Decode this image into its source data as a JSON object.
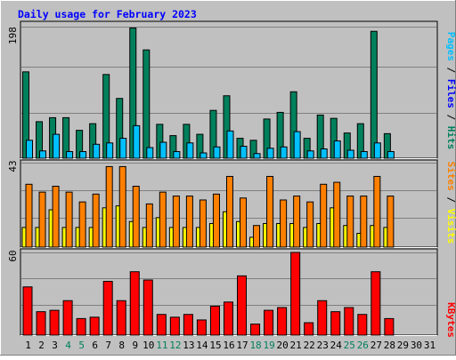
{
  "chart_data": {
    "type": "bar",
    "title": "Daily usage for February 2023",
    "x": [
      "1",
      "2",
      "3",
      "4",
      "5",
      "6",
      "7",
      "8",
      "9",
      "10",
      "11",
      "12",
      "13",
      "14",
      "15",
      "16",
      "17",
      "18",
      "19",
      "20",
      "21",
      "22",
      "23",
      "24",
      "25",
      "26",
      "27",
      "28",
      "29",
      "30",
      "31"
    ],
    "weekend_days": [
      "4",
      "5",
      "11",
      "12",
      "18",
      "19",
      "25",
      "26"
    ],
    "panels": [
      {
        "id": "top",
        "ymax_label": "198",
        "ymax": 198,
        "labels_right": [
          "Hits",
          "Files",
          "Pages"
        ],
        "series": [
          {
            "name": "Hits",
            "color": "#00805c",
            "values": [
              130,
              55,
              61,
              61,
              42,
              52,
              126,
              90,
              196,
              163,
              51,
              34,
              51,
              36,
              72,
              94,
              30,
              27,
              59,
              69,
              100,
              30,
              65,
              60,
              38,
              52,
              191,
              37,
              0,
              0,
              0
            ]
          },
          {
            "name": "Files",
            "color": "#00c0ff",
            "values": [
              27,
              11,
              36,
              10,
              10,
              21,
              23,
              30,
              49,
              16,
              24,
              10,
              23,
              8,
              17,
              41,
              18,
              7,
              15,
              17,
              40,
              11,
              14,
              26,
              12,
              10,
              23,
              10,
              0,
              0,
              0
            ]
          },
          {
            "name": "Pages",
            "color": "#00c0ff",
            "values": [
              27,
              11,
              36,
              10,
              10,
              21,
              23,
              30,
              49,
              16,
              24,
              10,
              23,
              8,
              17,
              41,
              18,
              7,
              15,
              17,
              40,
              11,
              14,
              26,
              12,
              10,
              23,
              10,
              0,
              0,
              0
            ]
          }
        ]
      },
      {
        "id": "middle",
        "ymax_label": "43",
        "ymax": 43,
        "labels_right": [
          "Visits",
          "Sites"
        ],
        "series": [
          {
            "name": "Visits",
            "color": "#ff8000",
            "values": [
              32,
              28,
              31,
              28,
              23,
              27,
              41,
              41,
              31,
              22,
              28,
              26,
              26,
              24,
              27,
              36,
              25,
              11,
              36,
              24,
              26,
              23,
              32,
              33,
              26,
              26,
              36,
              26,
              0,
              0,
              0
            ]
          },
          {
            "name": "Sites",
            "color": "#ffff00",
            "values": [
              10,
              10,
              19,
              10,
              10,
              10,
              20,
              21,
              13,
              10,
              15,
              10,
              10,
              10,
              12,
              18,
              13,
              5,
              12,
              12,
              12,
              10,
              12,
              20,
              11,
              7,
              11,
              10,
              0,
              0,
              0
            ]
          }
        ]
      },
      {
        "id": "bottom",
        "ymax_label": "60",
        "ymax": 60,
        "labels_right": [
          "KBytes"
        ],
        "series": [
          {
            "name": "KBytes",
            "color": "#ff0000",
            "values": [
              35,
              17,
              18,
              25,
              12,
              13,
              39,
              25,
              46,
              40,
              15,
              13,
              15,
              11,
              21,
              24,
              43,
              8,
              18,
              20,
              60,
              9,
              25,
              17,
              20,
              15,
              46,
              12,
              0,
              0,
              0
            ]
          }
        ]
      }
    ]
  },
  "colors": {
    "background": "#c0c0c0",
    "title": "#0000ff",
    "weekday_label": "#000000",
    "weekend_label": "#00805c",
    "grid": "#808080"
  },
  "right_labels": {
    "hits": {
      "text": "Hits",
      "color": "#00805c"
    },
    "sep1": {
      "text": " / ",
      "color": "#000000"
    },
    "files": {
      "text": "Files",
      "color": "#0000ff"
    },
    "sep2": {
      "text": " / ",
      "color": "#000000"
    },
    "pages": {
      "text": "Pages",
      "color": "#00c0ff"
    },
    "visits": {
      "text": "Visits",
      "color": "#ffff00"
    },
    "sep3": {
      "text": " / ",
      "color": "#000000"
    },
    "sites": {
      "text": "Sites",
      "color": "#ff8000"
    },
    "kbytes": {
      "text": "KBytes",
      "color": "#ff0000"
    }
  }
}
